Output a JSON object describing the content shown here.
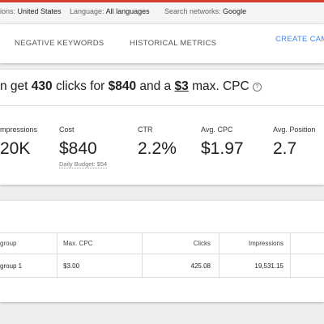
{
  "filters": [
    {
      "label": "ions:",
      "value": "United States"
    },
    {
      "label": "Language:",
      "value": "All languages"
    },
    {
      "label": "Search networks:",
      "value": "Google"
    }
  ],
  "tabs": [
    "NEGATIVE KEYWORDS",
    "HISTORICAL METRICS"
  ],
  "action": "CREATE CAM",
  "summary": {
    "prefix": "n get",
    "clicks": "430",
    "mid1": "clicks for",
    "cost": "$840",
    "mid2": "and a",
    "cpc": "$3",
    "suffix": "max. CPC",
    "help": "?"
  },
  "metrics": [
    {
      "label": "mpressions",
      "value": "20K"
    },
    {
      "label": "Cost",
      "value": "$840"
    },
    {
      "label": "CTR",
      "value": "2.2%"
    },
    {
      "label": "Avg. CPC",
      "value": "$1.97"
    },
    {
      "label": "Avg. Position",
      "value": "2.7"
    }
  ],
  "daily_budget": "Daily Budget: $54",
  "table": {
    "columns": [
      "group",
      "Max. CPC",
      "Clicks",
      "Impressions"
    ],
    "rows": [
      [
        "group 1",
        "$3.00",
        "425.08",
        "19,531.15"
      ]
    ]
  }
}
